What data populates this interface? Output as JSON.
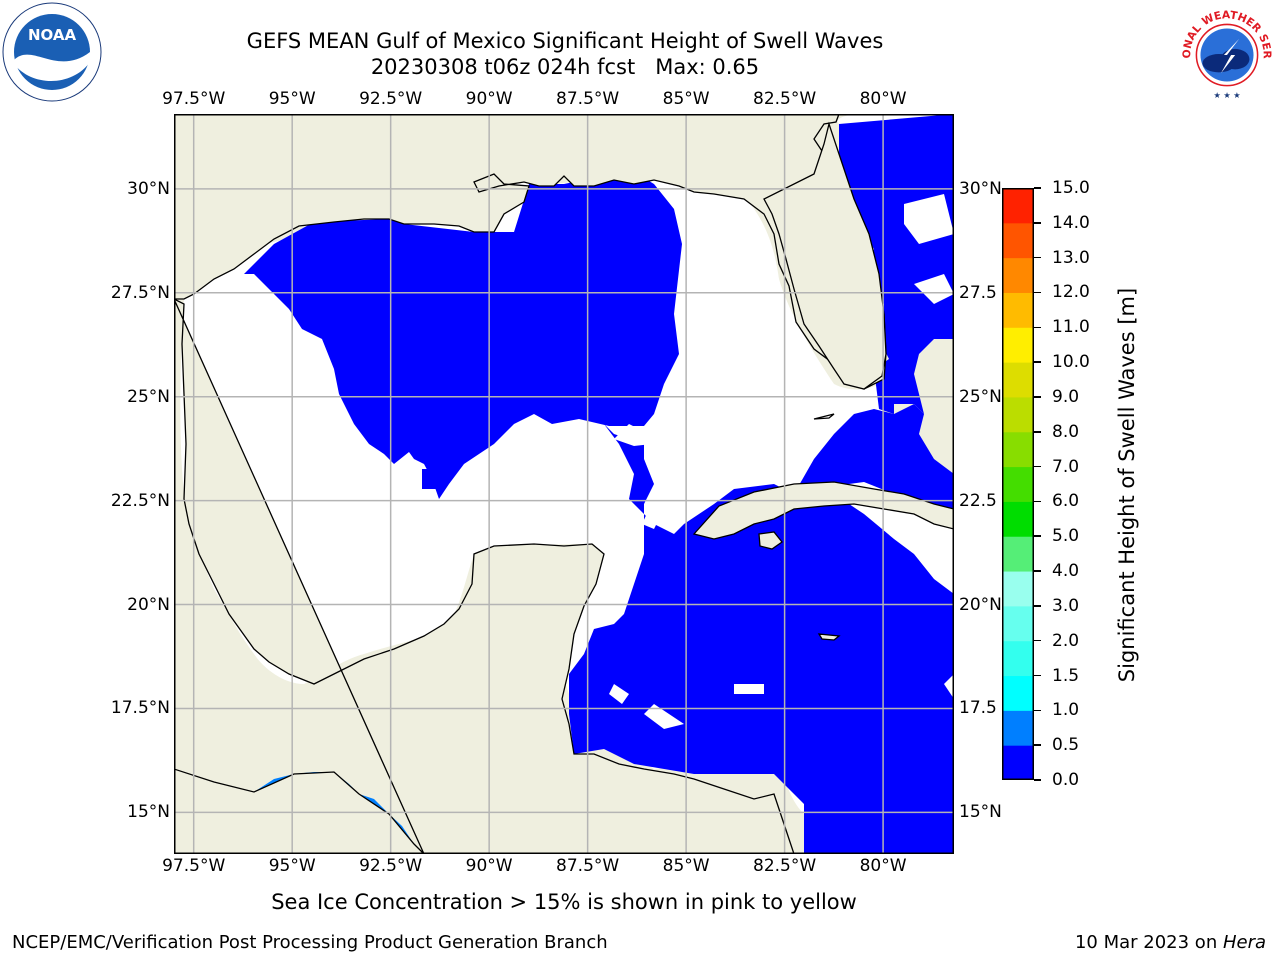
{
  "title": {
    "line1": "GEFS MEAN Gulf of Mexico Significant Height of Swell Waves",
    "line2": "20230308 t06z 024h fcst   Max: 0.65"
  },
  "logos": {
    "left": {
      "name": "noaa-logo",
      "text": "NOAA"
    },
    "right": {
      "name": "national-weather-service-logo",
      "text": "NATIONAL WEATHER SERVICE"
    }
  },
  "axes": {
    "lon_labels": [
      "97.5°W",
      "95°W",
      "92.5°W",
      "90°W",
      "87.5°W",
      "85°W",
      "82.5°W",
      "80°W"
    ],
    "lat_labels_left": [
      "30°N",
      "27.5°N",
      "25°N",
      "22.5°N",
      "20°N",
      "17.5°N",
      "15°N"
    ],
    "lat_labels_right": [
      "30°N",
      "27.5",
      "25°N",
      "22.5",
      "20°N",
      "17.5",
      "15°N"
    ],
    "lon_range": [
      -98,
      -78.2
    ],
    "lat_range": [
      14,
      31.8
    ],
    "grid": true
  },
  "colorbar": {
    "label": "Significant Height of Swell Waves [m]",
    "ticks": [
      "0.0",
      "0.5",
      "1.0",
      "1.5",
      "2.0",
      "3.0",
      "4.0",
      "5.0",
      "6.0",
      "7.0",
      "8.0",
      "9.0",
      "10.0",
      "11.0",
      "12.0",
      "13.0",
      "14.0",
      "15.0"
    ],
    "colors": [
      "#0000ff",
      "#007fff",
      "#00ffff",
      "#33ffee",
      "#66ffee",
      "#99ffee",
      "#55ee77",
      "#00dd00",
      "#44dd00",
      "#88dd00",
      "#bbdd00",
      "#dddd00",
      "#ffee00",
      "#ffbb00",
      "#ff8800",
      "#ff5500",
      "#ff2200",
      "#ff0000"
    ]
  },
  "colors": {
    "land": "#efefdf",
    "swell_0_0p5": "#0000ff",
    "swell_0p5_1": "#0080ff",
    "grid": "#b4b4b4"
  },
  "footnote": "Sea Ice Concentration > 15% is shown in pink to yellow",
  "credit": "NCEP/EMC/Verification Post Processing Product Generation Branch",
  "date": {
    "text": "10 Mar 2023 on ",
    "host": "Hera"
  }
}
